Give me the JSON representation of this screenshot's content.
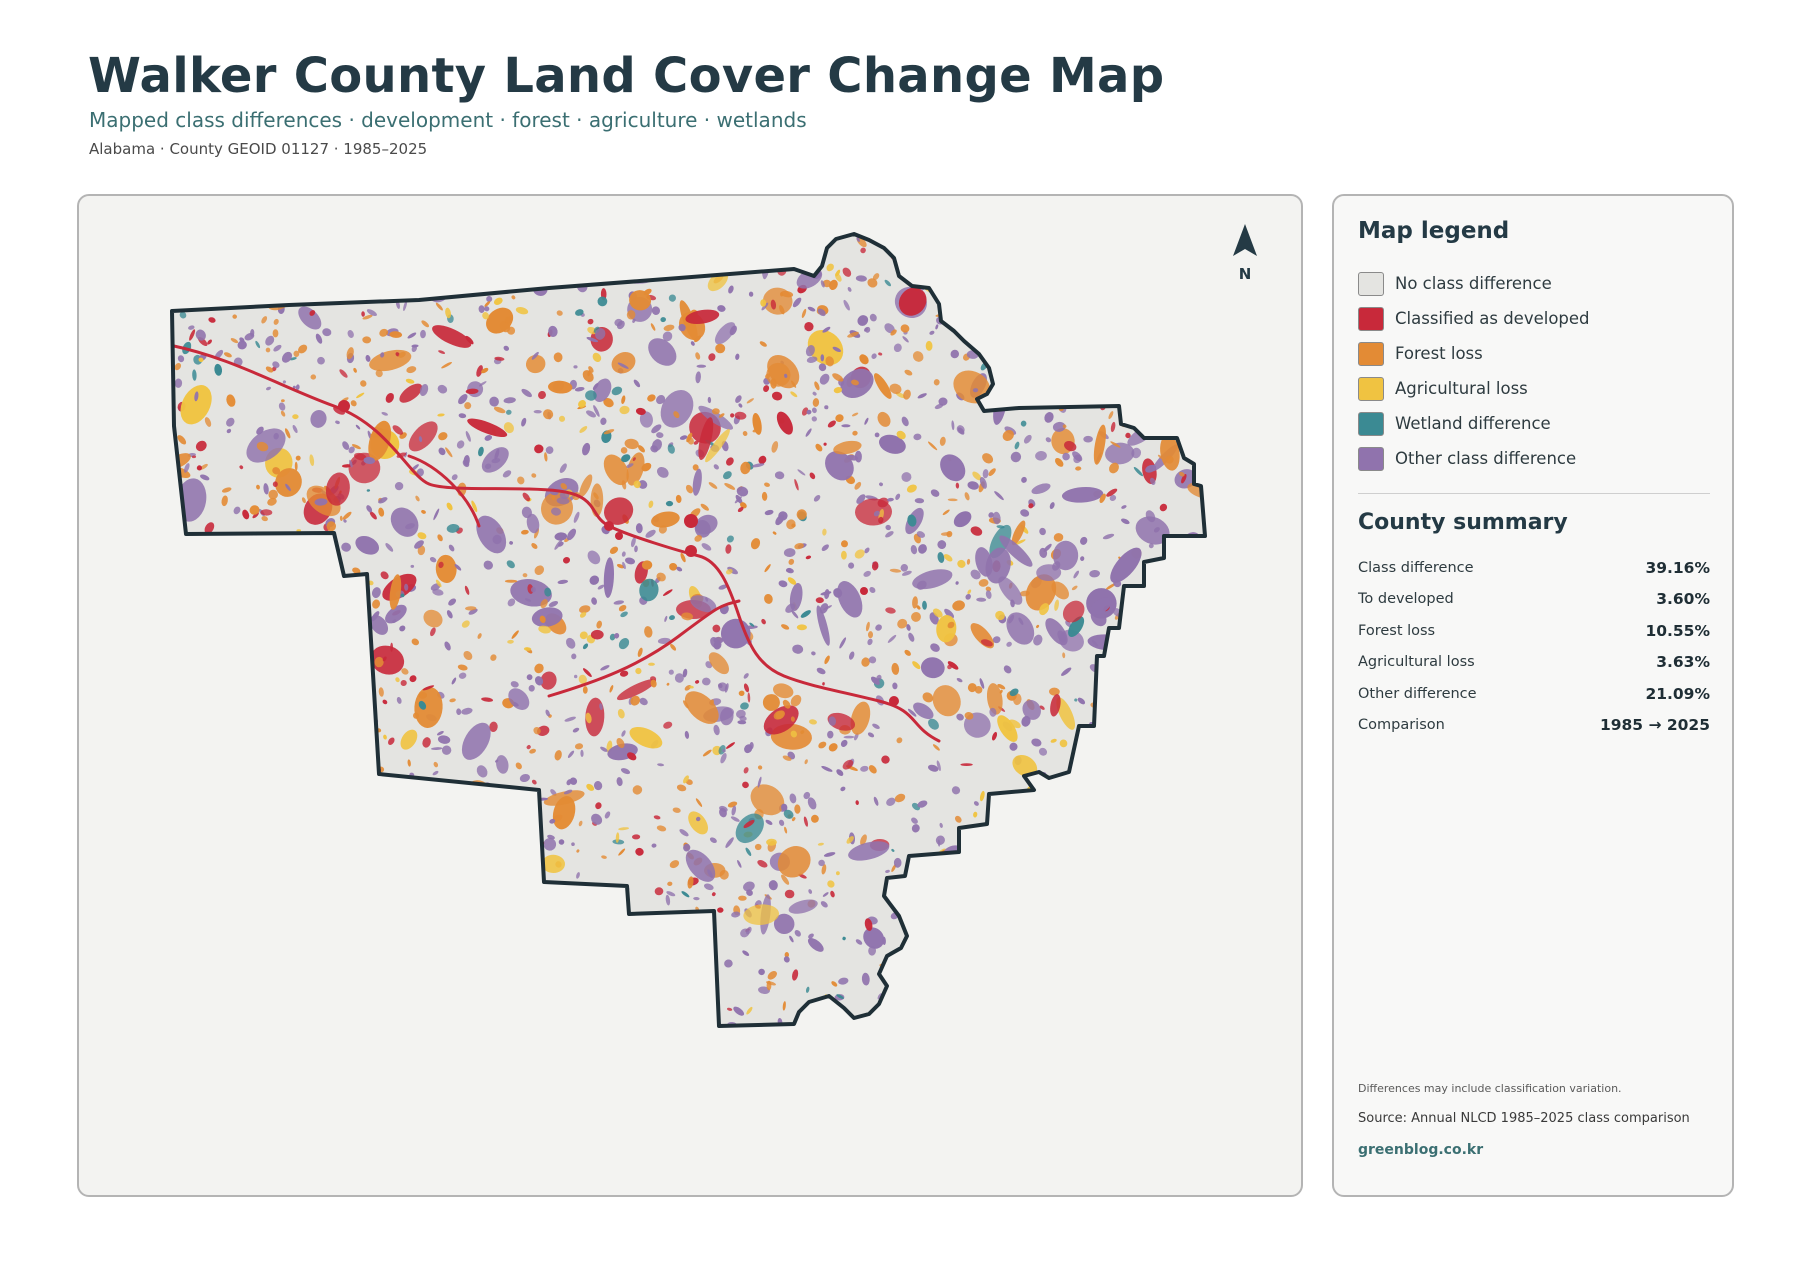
{
  "header": {
    "title": "Walker County Land Cover Change Map",
    "subtitle": "Mapped class differences · development · forest · agriculture · wetlands",
    "meta": "Alabama · County GEOID 01127 · 1985–2025"
  },
  "map": {
    "north_label": "N",
    "colors": {
      "no_change": "#e4e4e1",
      "developed": "#c8293a",
      "forest_loss": "#e38b35",
      "agri_loss": "#f0c341",
      "wetland": "#3b8a93",
      "other": "#9073ad",
      "boundary": "#1f2f37"
    }
  },
  "legend": {
    "title": "Map legend",
    "items": [
      {
        "label": "No class difference",
        "color": "#e4e4e1"
      },
      {
        "label": "Classified as developed",
        "color": "#c8293a"
      },
      {
        "label": "Forest loss",
        "color": "#e38b35"
      },
      {
        "label": "Agricultural loss",
        "color": "#f0c341"
      },
      {
        "label": "Wetland difference",
        "color": "#3b8a93"
      },
      {
        "label": "Other class difference",
        "color": "#9073ad"
      }
    ]
  },
  "summary": {
    "title": "County summary",
    "rows": [
      {
        "key": "Class difference",
        "value": "39.16%"
      },
      {
        "key": "To developed",
        "value": "3.60%"
      },
      {
        "key": "Forest loss",
        "value": "10.55%"
      },
      {
        "key": "Agricultural loss",
        "value": "3.63%"
      },
      {
        "key": "Other difference",
        "value": "21.09%"
      },
      {
        "key": "Comparison",
        "value": "1985 → 2025"
      }
    ]
  },
  "footer": {
    "note": "Differences may include classification variation.",
    "source": "Source: Annual NLCD 1985–2025 class comparison",
    "website": "greenblog.co.kr"
  }
}
